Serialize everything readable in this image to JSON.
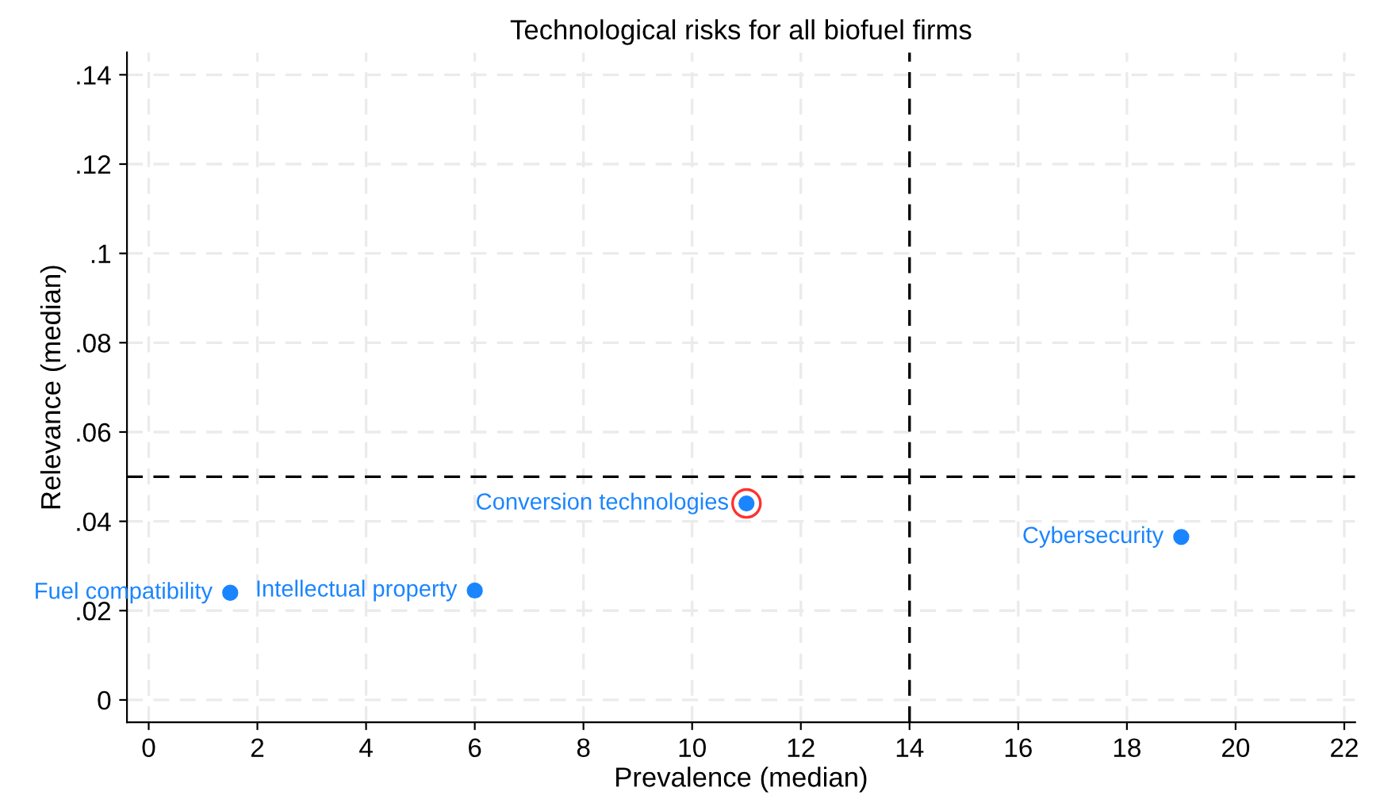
{
  "chart_data": {
    "type": "scatter",
    "title": "Technological risks for all biofuel firms",
    "xlabel": "Prevalence (median)",
    "ylabel": "Relevance (median)",
    "series": [
      {
        "color": "#1a85ff",
        "x": [
          1.5,
          6,
          11,
          19
        ],
        "values": [
          0.024,
          0.0245,
          0.044,
          0.0365
        ],
        "marker": "circle"
      },
      {
        "color": "#ff3030",
        "x": [
          11
        ],
        "values": [
          0.044
        ],
        "marker": "circle"
      }
    ],
    "annotations": [
      {
        "text": "Fuel compatibility",
        "x": 1.5,
        "y": 0.024
      },
      {
        "text": "Intellectual property",
        "x": 6,
        "y": 0.0245
      },
      {
        "text": "Conversion technologies",
        "x": 11,
        "y": 0.044
      },
      {
        "text": "Cybersecurity",
        "x": 19,
        "y": 0.0365
      }
    ],
    "ref_lines": [
      {
        "axis": "x",
        "value": 14,
        "color": "#000000",
        "line_style": "dashed"
      },
      {
        "axis": "y",
        "value": 0.05,
        "color": "#000000",
        "line_style": "dashed"
      }
    ],
    "xlim": [
      -0.4,
      22.2
    ],
    "ylim": [
      -0.005,
      0.145
    ],
    "xticks": [
      0,
      2,
      4,
      6,
      8,
      10,
      12,
      14,
      16,
      18,
      20,
      22
    ],
    "yticks": [
      0,
      {
        "value": 0.02,
        "label": ".02"
      },
      {
        "value": 0.04,
        "label": ".04"
      },
      {
        "value": 0.06,
        "label": ".06"
      },
      {
        "value": 0.08,
        "label": ".08"
      },
      {
        "value": 0.1,
        "label": ".1"
      },
      {
        "value": 0.12,
        "label": ".12"
      },
      {
        "value": 0.14,
        "label": ".14"
      }
    ],
    "grid": true
  }
}
